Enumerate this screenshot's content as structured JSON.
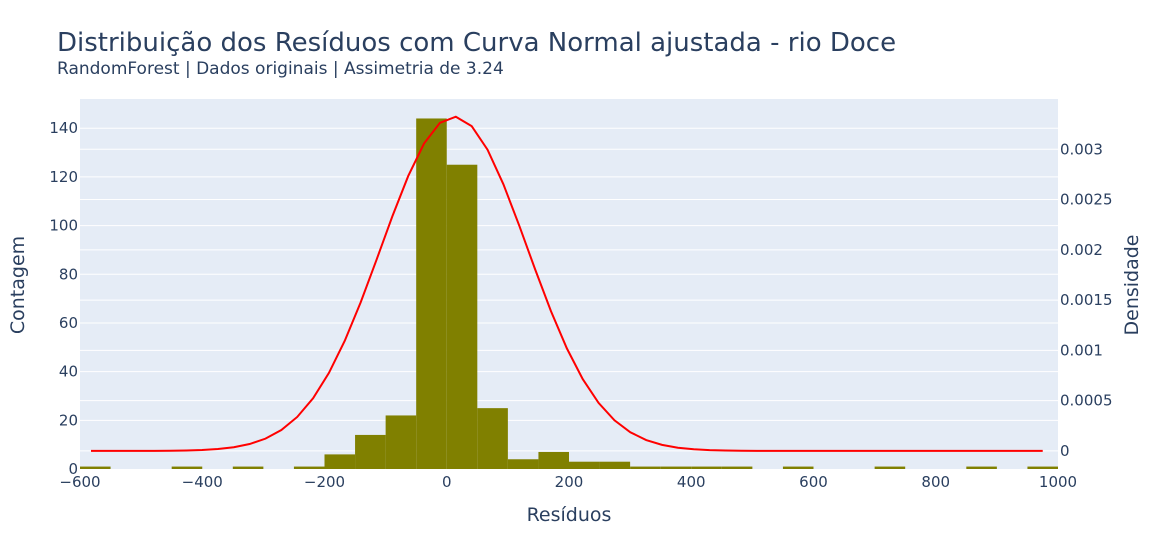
{
  "chart_data": {
    "type": "bar",
    "title": "Distribuição dos Resíduos com Curva Normal ajustada - rio Doce",
    "subtitle": "RandomForest | Dados originais | Assimetria de 3.24",
    "xlabel": "Resíduos",
    "ylabel": "Contagem",
    "y2label": "Densidade",
    "xlim": [
      -600,
      1000
    ],
    "ylim": [
      0,
      152
    ],
    "y2lim": [
      -0.00018,
      0.0035
    ],
    "x_ticks": [
      -600,
      -400,
      -200,
      0,
      200,
      400,
      600,
      800,
      1000
    ],
    "x_tick_labels": [
      "−600",
      "−400",
      "−200",
      "0",
      "200",
      "400",
      "600",
      "800",
      "1000"
    ],
    "y_ticks": [
      0,
      20,
      40,
      60,
      80,
      100,
      120,
      140
    ],
    "y_tick_labels": [
      "0",
      "20",
      "40",
      "60",
      "80",
      "100",
      "120",
      "140"
    ],
    "y2_ticks": [
      0,
      0.0005,
      0.001,
      0.0015,
      0.002,
      0.0025,
      0.003
    ],
    "y2_tick_labels": [
      "0",
      "0.0005",
      "0.001",
      "0.0015",
      "0.002",
      "0.0025",
      "0.003"
    ],
    "grid": true,
    "legend": "none",
    "background_color": "#e5ecf6",
    "histogram": {
      "name": "Contagem",
      "color": "#808000",
      "bin_width": 50,
      "bins": [
        {
          "x0": -600,
          "count": 1
        },
        {
          "x0": -450,
          "count": 1
        },
        {
          "x0": -350,
          "count": 1
        },
        {
          "x0": -250,
          "count": 1
        },
        {
          "x0": -200,
          "count": 6
        },
        {
          "x0": -150,
          "count": 14
        },
        {
          "x0": -100,
          "count": 22
        },
        {
          "x0": -50,
          "count": 144
        },
        {
          "x0": 0,
          "count": 125
        },
        {
          "x0": 50,
          "count": 25
        },
        {
          "x0": 100,
          "count": 4
        },
        {
          "x0": 150,
          "count": 7
        },
        {
          "x0": 200,
          "count": 3
        },
        {
          "x0": 250,
          "count": 3
        },
        {
          "x0": 300,
          "count": 1
        },
        {
          "x0": 350,
          "count": 1
        },
        {
          "x0": 400,
          "count": 1
        },
        {
          "x0": 450,
          "count": 1
        },
        {
          "x0": 550,
          "count": 1
        },
        {
          "x0": 700,
          "count": 1
        },
        {
          "x0": 850,
          "count": 1
        },
        {
          "x0": 950,
          "count": 1
        }
      ]
    },
    "normal_curve": {
      "name": "Curva Normal",
      "color": "#ff0000",
      "mean": 12,
      "std": 120,
      "x_range": [
        -582,
        975
      ]
    }
  }
}
